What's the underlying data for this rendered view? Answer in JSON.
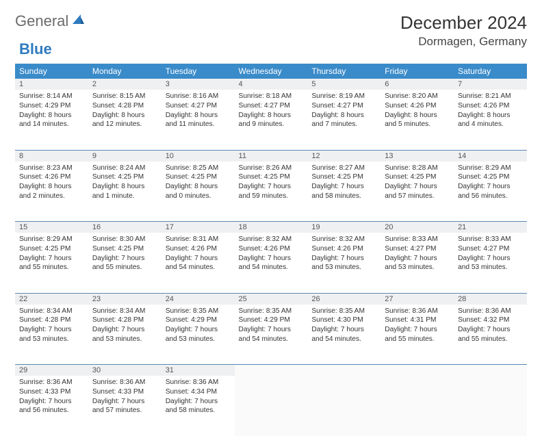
{
  "branding": {
    "word1": "General",
    "word2": "Blue"
  },
  "title": "December 2024",
  "location": "Dormagen, Germany",
  "colors": {
    "header_bg": "#3a8bc9",
    "header_fg": "#ffffff",
    "daynum_bg": "#eef0f2",
    "border": "#5a88b5",
    "brand_blue": "#2f7bbf"
  },
  "weekdays": [
    "Sunday",
    "Monday",
    "Tuesday",
    "Wednesday",
    "Thursday",
    "Friday",
    "Saturday"
  ],
  "weeks": [
    [
      {
        "n": "1",
        "sr": "Sunrise: 8:14 AM",
        "ss": "Sunset: 4:29 PM",
        "dl": "Daylight: 8 hours and 14 minutes."
      },
      {
        "n": "2",
        "sr": "Sunrise: 8:15 AM",
        "ss": "Sunset: 4:28 PM",
        "dl": "Daylight: 8 hours and 12 minutes."
      },
      {
        "n": "3",
        "sr": "Sunrise: 8:16 AM",
        "ss": "Sunset: 4:27 PM",
        "dl": "Daylight: 8 hours and 11 minutes."
      },
      {
        "n": "4",
        "sr": "Sunrise: 8:18 AM",
        "ss": "Sunset: 4:27 PM",
        "dl": "Daylight: 8 hours and 9 minutes."
      },
      {
        "n": "5",
        "sr": "Sunrise: 8:19 AM",
        "ss": "Sunset: 4:27 PM",
        "dl": "Daylight: 8 hours and 7 minutes."
      },
      {
        "n": "6",
        "sr": "Sunrise: 8:20 AM",
        "ss": "Sunset: 4:26 PM",
        "dl": "Daylight: 8 hours and 5 minutes."
      },
      {
        "n": "7",
        "sr": "Sunrise: 8:21 AM",
        "ss": "Sunset: 4:26 PM",
        "dl": "Daylight: 8 hours and 4 minutes."
      }
    ],
    [
      {
        "n": "8",
        "sr": "Sunrise: 8:23 AM",
        "ss": "Sunset: 4:26 PM",
        "dl": "Daylight: 8 hours and 2 minutes."
      },
      {
        "n": "9",
        "sr": "Sunrise: 8:24 AM",
        "ss": "Sunset: 4:25 PM",
        "dl": "Daylight: 8 hours and 1 minute."
      },
      {
        "n": "10",
        "sr": "Sunrise: 8:25 AM",
        "ss": "Sunset: 4:25 PM",
        "dl": "Daylight: 8 hours and 0 minutes."
      },
      {
        "n": "11",
        "sr": "Sunrise: 8:26 AM",
        "ss": "Sunset: 4:25 PM",
        "dl": "Daylight: 7 hours and 59 minutes."
      },
      {
        "n": "12",
        "sr": "Sunrise: 8:27 AM",
        "ss": "Sunset: 4:25 PM",
        "dl": "Daylight: 7 hours and 58 minutes."
      },
      {
        "n": "13",
        "sr": "Sunrise: 8:28 AM",
        "ss": "Sunset: 4:25 PM",
        "dl": "Daylight: 7 hours and 57 minutes."
      },
      {
        "n": "14",
        "sr": "Sunrise: 8:29 AM",
        "ss": "Sunset: 4:25 PM",
        "dl": "Daylight: 7 hours and 56 minutes."
      }
    ],
    [
      {
        "n": "15",
        "sr": "Sunrise: 8:29 AM",
        "ss": "Sunset: 4:25 PM",
        "dl": "Daylight: 7 hours and 55 minutes."
      },
      {
        "n": "16",
        "sr": "Sunrise: 8:30 AM",
        "ss": "Sunset: 4:25 PM",
        "dl": "Daylight: 7 hours and 55 minutes."
      },
      {
        "n": "17",
        "sr": "Sunrise: 8:31 AM",
        "ss": "Sunset: 4:26 PM",
        "dl": "Daylight: 7 hours and 54 minutes."
      },
      {
        "n": "18",
        "sr": "Sunrise: 8:32 AM",
        "ss": "Sunset: 4:26 PM",
        "dl": "Daylight: 7 hours and 54 minutes."
      },
      {
        "n": "19",
        "sr": "Sunrise: 8:32 AM",
        "ss": "Sunset: 4:26 PM",
        "dl": "Daylight: 7 hours and 53 minutes."
      },
      {
        "n": "20",
        "sr": "Sunrise: 8:33 AM",
        "ss": "Sunset: 4:27 PM",
        "dl": "Daylight: 7 hours and 53 minutes."
      },
      {
        "n": "21",
        "sr": "Sunrise: 8:33 AM",
        "ss": "Sunset: 4:27 PM",
        "dl": "Daylight: 7 hours and 53 minutes."
      }
    ],
    [
      {
        "n": "22",
        "sr": "Sunrise: 8:34 AM",
        "ss": "Sunset: 4:28 PM",
        "dl": "Daylight: 7 hours and 53 minutes."
      },
      {
        "n": "23",
        "sr": "Sunrise: 8:34 AM",
        "ss": "Sunset: 4:28 PM",
        "dl": "Daylight: 7 hours and 53 minutes."
      },
      {
        "n": "24",
        "sr": "Sunrise: 8:35 AM",
        "ss": "Sunset: 4:29 PM",
        "dl": "Daylight: 7 hours and 53 minutes."
      },
      {
        "n": "25",
        "sr": "Sunrise: 8:35 AM",
        "ss": "Sunset: 4:29 PM",
        "dl": "Daylight: 7 hours and 54 minutes."
      },
      {
        "n": "26",
        "sr": "Sunrise: 8:35 AM",
        "ss": "Sunset: 4:30 PM",
        "dl": "Daylight: 7 hours and 54 minutes."
      },
      {
        "n": "27",
        "sr": "Sunrise: 8:36 AM",
        "ss": "Sunset: 4:31 PM",
        "dl": "Daylight: 7 hours and 55 minutes."
      },
      {
        "n": "28",
        "sr": "Sunrise: 8:36 AM",
        "ss": "Sunset: 4:32 PM",
        "dl": "Daylight: 7 hours and 55 minutes."
      }
    ],
    [
      {
        "n": "29",
        "sr": "Sunrise: 8:36 AM",
        "ss": "Sunset: 4:33 PM",
        "dl": "Daylight: 7 hours and 56 minutes."
      },
      {
        "n": "30",
        "sr": "Sunrise: 8:36 AM",
        "ss": "Sunset: 4:33 PM",
        "dl": "Daylight: 7 hours and 57 minutes."
      },
      {
        "n": "31",
        "sr": "Sunrise: 8:36 AM",
        "ss": "Sunset: 4:34 PM",
        "dl": "Daylight: 7 hours and 58 minutes."
      },
      null,
      null,
      null,
      null
    ]
  ]
}
